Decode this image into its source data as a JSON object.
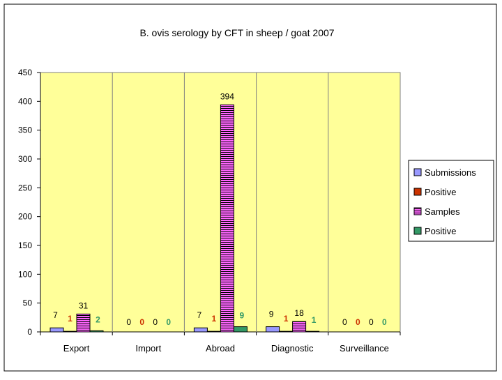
{
  "chart_data": {
    "type": "bar",
    "title": "B. ovis serology  by CFT in sheep / goat  2007",
    "xlabel": "",
    "ylabel": "",
    "ylim": [
      0,
      450
    ],
    "yticks": [
      "0",
      "50",
      "100",
      "150",
      "200",
      "250",
      "300",
      "350",
      "400",
      "450"
    ],
    "categories": [
      "Export",
      "Import",
      "Abroad",
      "Diagnostic",
      "Surveillance"
    ],
    "series": [
      {
        "name": "Submissions",
        "color": "#9999ff",
        "values": [
          7,
          0,
          7,
          9,
          0
        ],
        "labels": [
          "7",
          "0",
          "7",
          "9",
          "0"
        ],
        "label_color": "#000000"
      },
      {
        "name": "Positive",
        "color": "#cc3300",
        "values": [
          1,
          0,
          1,
          1,
          0
        ],
        "labels": [
          "1",
          "0",
          "1",
          "1",
          "0"
        ],
        "label_color": "#cc3300"
      },
      {
        "name": "Samples",
        "color": "#ff66ff",
        "values": [
          31,
          0,
          394,
          18,
          0
        ],
        "labels": [
          "31",
          "0",
          "394",
          "18",
          "0"
        ],
        "label_color": "#000000",
        "pattern": "horizontal-stripes"
      },
      {
        "name": "Positive",
        "color": "#339966",
        "values": [
          2,
          0,
          9,
          1,
          0
        ],
        "labels": [
          "2",
          "0",
          "9",
          "1",
          "0"
        ],
        "label_color": "#339966"
      }
    ],
    "plot_background": "#ffff99",
    "grid": false,
    "legend_position": "right"
  }
}
